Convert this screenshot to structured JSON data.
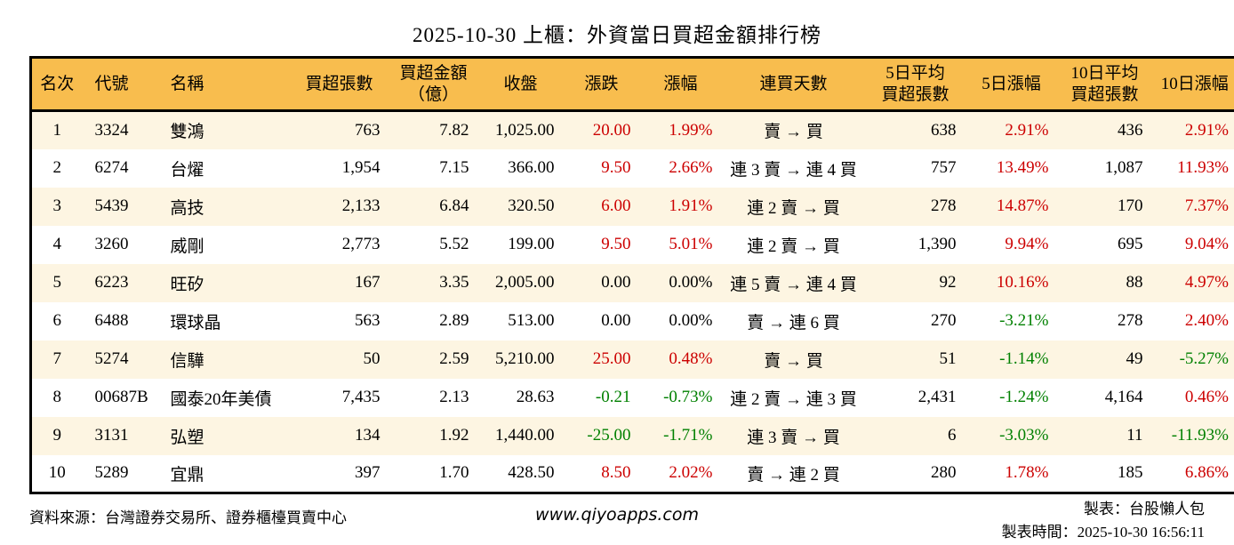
{
  "title": "2025-10-30 上櫃：外資當日買超金額排行榜",
  "colors": {
    "up": "#cc0000",
    "down": "#008000",
    "neutral": "#000000",
    "header_bg": "#f8bd4e",
    "row_alt_bg": "#fdf5e2",
    "border": "#000000"
  },
  "table": {
    "columns": [
      "名次",
      "代號",
      "名稱",
      "買超張數",
      "買超金額\n（億）",
      "收盤",
      "漲跌",
      "漲幅",
      "連買天數",
      "5日平均\n買超張數",
      "5日漲幅",
      "10日平均\n買超張數",
      "10日漲幅"
    ],
    "rows": [
      {
        "rank": "1",
        "code": "3324",
        "name": "雙鴻",
        "vol": "763",
        "amt": "7.82",
        "close": "1,025.00",
        "chg": {
          "t": "20.00",
          "c": "u"
        },
        "pct": {
          "t": "1.99%",
          "c": "u"
        },
        "streak": "賣 → 買",
        "avg5": "638",
        "pct5": {
          "t": "2.91%",
          "c": "u"
        },
        "avg10": "436",
        "pct10": {
          "t": "2.91%",
          "c": "u"
        }
      },
      {
        "rank": "2",
        "code": "6274",
        "name": "台燿",
        "vol": "1,954",
        "amt": "7.15",
        "close": "366.00",
        "chg": {
          "t": "9.50",
          "c": "u"
        },
        "pct": {
          "t": "2.66%",
          "c": "u"
        },
        "streak": "連 3 賣 → 連 4 買",
        "avg5": "757",
        "pct5": {
          "t": "13.49%",
          "c": "u"
        },
        "avg10": "1,087",
        "pct10": {
          "t": "11.93%",
          "c": "u"
        }
      },
      {
        "rank": "3",
        "code": "5439",
        "name": "高技",
        "vol": "2,133",
        "amt": "6.84",
        "close": "320.50",
        "chg": {
          "t": "6.00",
          "c": "u"
        },
        "pct": {
          "t": "1.91%",
          "c": "u"
        },
        "streak": "連 2 賣 → 買",
        "avg5": "278",
        "pct5": {
          "t": "14.87%",
          "c": "u"
        },
        "avg10": "170",
        "pct10": {
          "t": "7.37%",
          "c": "u"
        }
      },
      {
        "rank": "4",
        "code": "3260",
        "name": "威剛",
        "vol": "2,773",
        "amt": "5.52",
        "close": "199.00",
        "chg": {
          "t": "9.50",
          "c": "u"
        },
        "pct": {
          "t": "5.01%",
          "c": "u"
        },
        "streak": "連 2 賣 → 買",
        "avg5": "1,390",
        "pct5": {
          "t": "9.94%",
          "c": "u"
        },
        "avg10": "695",
        "pct10": {
          "t": "9.04%",
          "c": "u"
        }
      },
      {
        "rank": "5",
        "code": "6223",
        "name": "旺矽",
        "vol": "167",
        "amt": "3.35",
        "close": "2,005.00",
        "chg": {
          "t": "0.00",
          "c": "n"
        },
        "pct": {
          "t": "0.00%",
          "c": "n"
        },
        "streak": "連 5 賣 → 連 4 買",
        "avg5": "92",
        "pct5": {
          "t": "10.16%",
          "c": "u"
        },
        "avg10": "88",
        "pct10": {
          "t": "4.97%",
          "c": "u"
        }
      },
      {
        "rank": "6",
        "code": "6488",
        "name": "環球晶",
        "vol": "563",
        "amt": "2.89",
        "close": "513.00",
        "chg": {
          "t": "0.00",
          "c": "n"
        },
        "pct": {
          "t": "0.00%",
          "c": "n"
        },
        "streak": "賣 → 連 6 買",
        "avg5": "270",
        "pct5": {
          "t": "-3.21%",
          "c": "d"
        },
        "avg10": "278",
        "pct10": {
          "t": "2.40%",
          "c": "u"
        }
      },
      {
        "rank": "7",
        "code": "5274",
        "name": "信驊",
        "vol": "50",
        "amt": "2.59",
        "close": "5,210.00",
        "chg": {
          "t": "25.00",
          "c": "u"
        },
        "pct": {
          "t": "0.48%",
          "c": "u"
        },
        "streak": "賣 → 買",
        "avg5": "51",
        "pct5": {
          "t": "-1.14%",
          "c": "d"
        },
        "avg10": "49",
        "pct10": {
          "t": "-5.27%",
          "c": "d"
        }
      },
      {
        "rank": "8",
        "code": "00687B",
        "name": "國泰20年美債",
        "vol": "7,435",
        "amt": "2.13",
        "close": "28.63",
        "chg": {
          "t": "-0.21",
          "c": "d"
        },
        "pct": {
          "t": "-0.73%",
          "c": "d"
        },
        "streak": "連 2 賣 → 連 3 買",
        "avg5": "2,431",
        "pct5": {
          "t": "-1.24%",
          "c": "d"
        },
        "avg10": "4,164",
        "pct10": {
          "t": "0.46%",
          "c": "u"
        }
      },
      {
        "rank": "9",
        "code": "3131",
        "name": "弘塑",
        "vol": "134",
        "amt": "1.92",
        "close": "1,440.00",
        "chg": {
          "t": "-25.00",
          "c": "d"
        },
        "pct": {
          "t": "-1.71%",
          "c": "d"
        },
        "streak": "連 3 賣 → 買",
        "avg5": "6",
        "pct5": {
          "t": "-3.03%",
          "c": "d"
        },
        "avg10": "11",
        "pct10": {
          "t": "-11.93%",
          "c": "d"
        }
      },
      {
        "rank": "10",
        "code": "5289",
        "name": "宜鼎",
        "vol": "397",
        "amt": "1.70",
        "close": "428.50",
        "chg": {
          "t": "8.50",
          "c": "u"
        },
        "pct": {
          "t": "2.02%",
          "c": "u"
        },
        "streak": "賣 → 連 2 買",
        "avg5": "280",
        "pct5": {
          "t": "1.78%",
          "c": "u"
        },
        "avg10": "185",
        "pct10": {
          "t": "6.86%",
          "c": "u"
        }
      }
    ]
  },
  "footer": {
    "source": "資料來源：台灣證券交易所、證券櫃檯買賣中心",
    "website": "www.qiyoapps.com",
    "maker": "製表：台股懶人包",
    "generated_at": "製表時間：2025-10-30 16:56:11"
  }
}
